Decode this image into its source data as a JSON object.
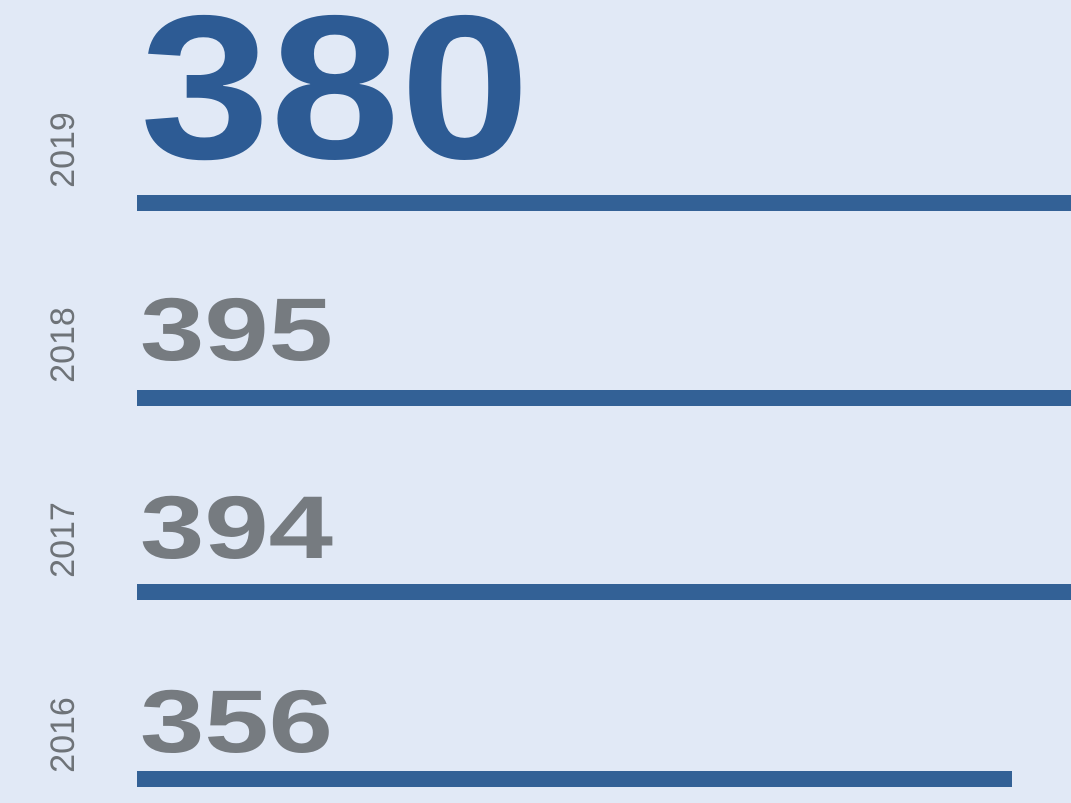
{
  "chart_data": {
    "type": "bar",
    "categories": [
      "2019",
      "2018",
      "2017",
      "2016"
    ],
    "values": [
      380,
      395,
      394,
      356
    ],
    "color": "#336196",
    "label_colors": [
      "#2d5b94",
      "#767b80",
      "#767b80",
      "#767b80"
    ],
    "background": "#e1e9f6"
  }
}
